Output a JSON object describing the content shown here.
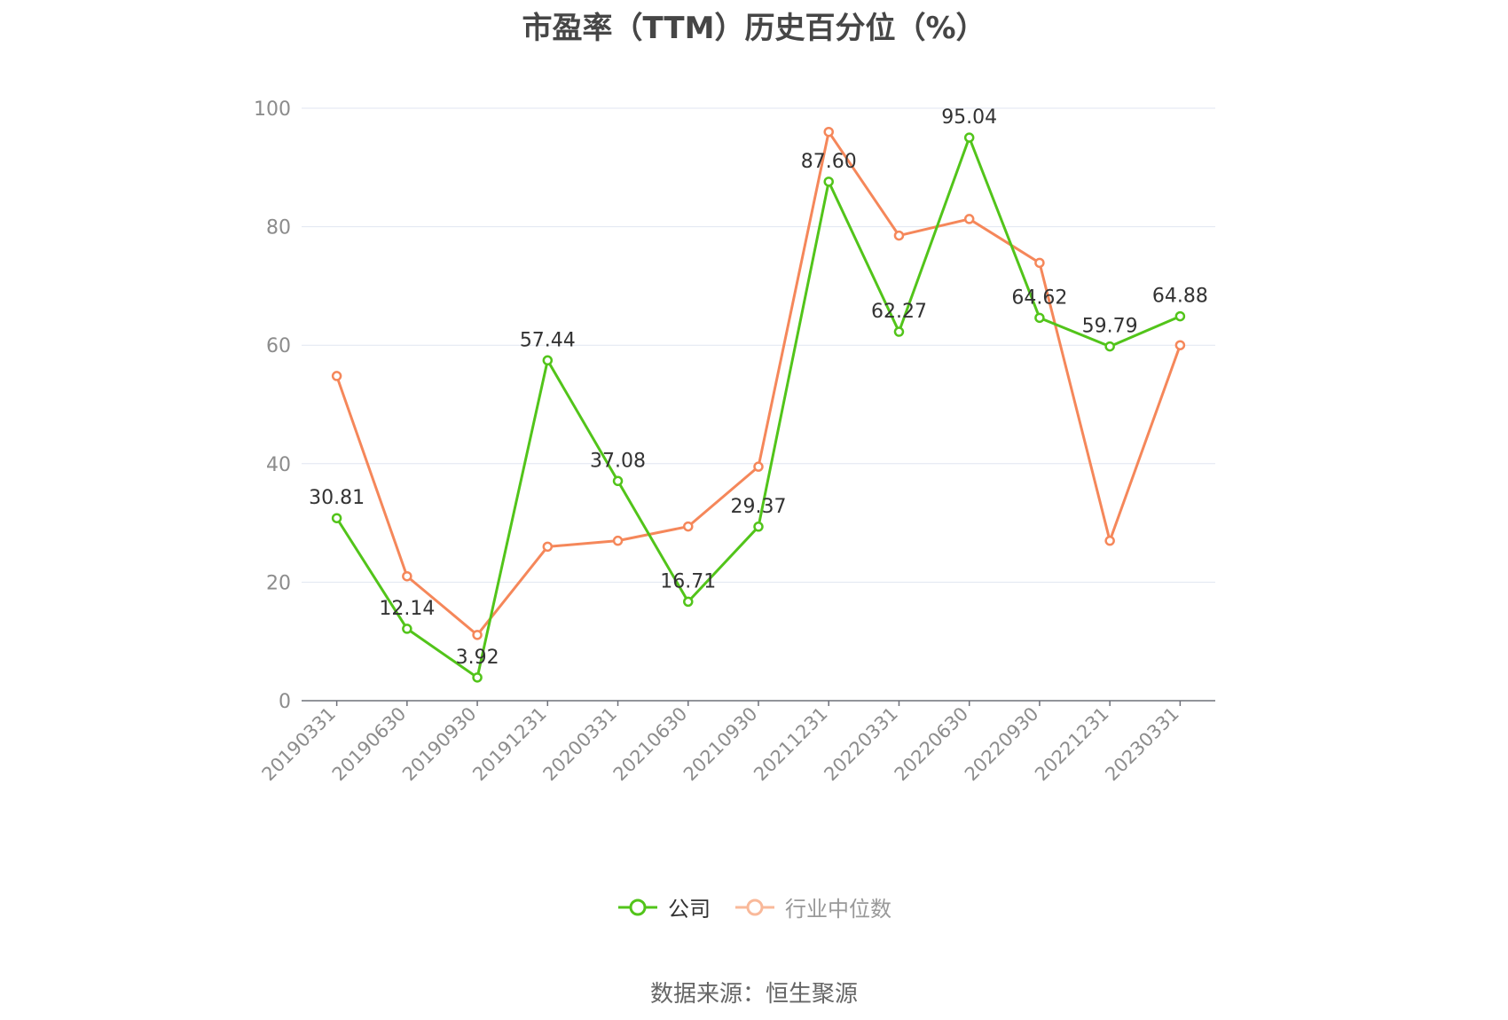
{
  "chart_data": {
    "type": "line",
    "title": "市盈率（TTM）历史百分位（%）",
    "categories": [
      "20190331",
      "20190630",
      "20190930",
      "20191231",
      "20200331",
      "20210630",
      "20210930",
      "20211231",
      "20220331",
      "20220630",
      "20220930",
      "20221231",
      "20230331"
    ],
    "ylim": [
      0,
      100
    ],
    "yticks": [
      0,
      20,
      40,
      60,
      80,
      100
    ],
    "grid": true,
    "legend_position": "bottom-center",
    "series": [
      {
        "name": "公司",
        "color": "#52c41a",
        "values": [
          30.81,
          12.14,
          3.92,
          57.44,
          37.08,
          16.71,
          29.37,
          87.6,
          62.27,
          95.04,
          64.62,
          59.79,
          64.88
        ],
        "labels": [
          "30.81",
          "12.14",
          "3.92",
          "57.44",
          "37.08",
          "16.71",
          "29.37",
          "87.60",
          "62.27",
          "95.04",
          "64.62",
          "59.79",
          "64.88"
        ]
      },
      {
        "name": "行业中位数",
        "color": "#f5875a",
        "values": [
          54.8,
          21.0,
          11.1,
          26.0,
          27.0,
          29.4,
          39.5,
          96.0,
          78.5,
          81.3,
          73.9,
          27.0,
          60.0
        ]
      }
    ]
  },
  "source_note": "数据来源：恒生聚源"
}
